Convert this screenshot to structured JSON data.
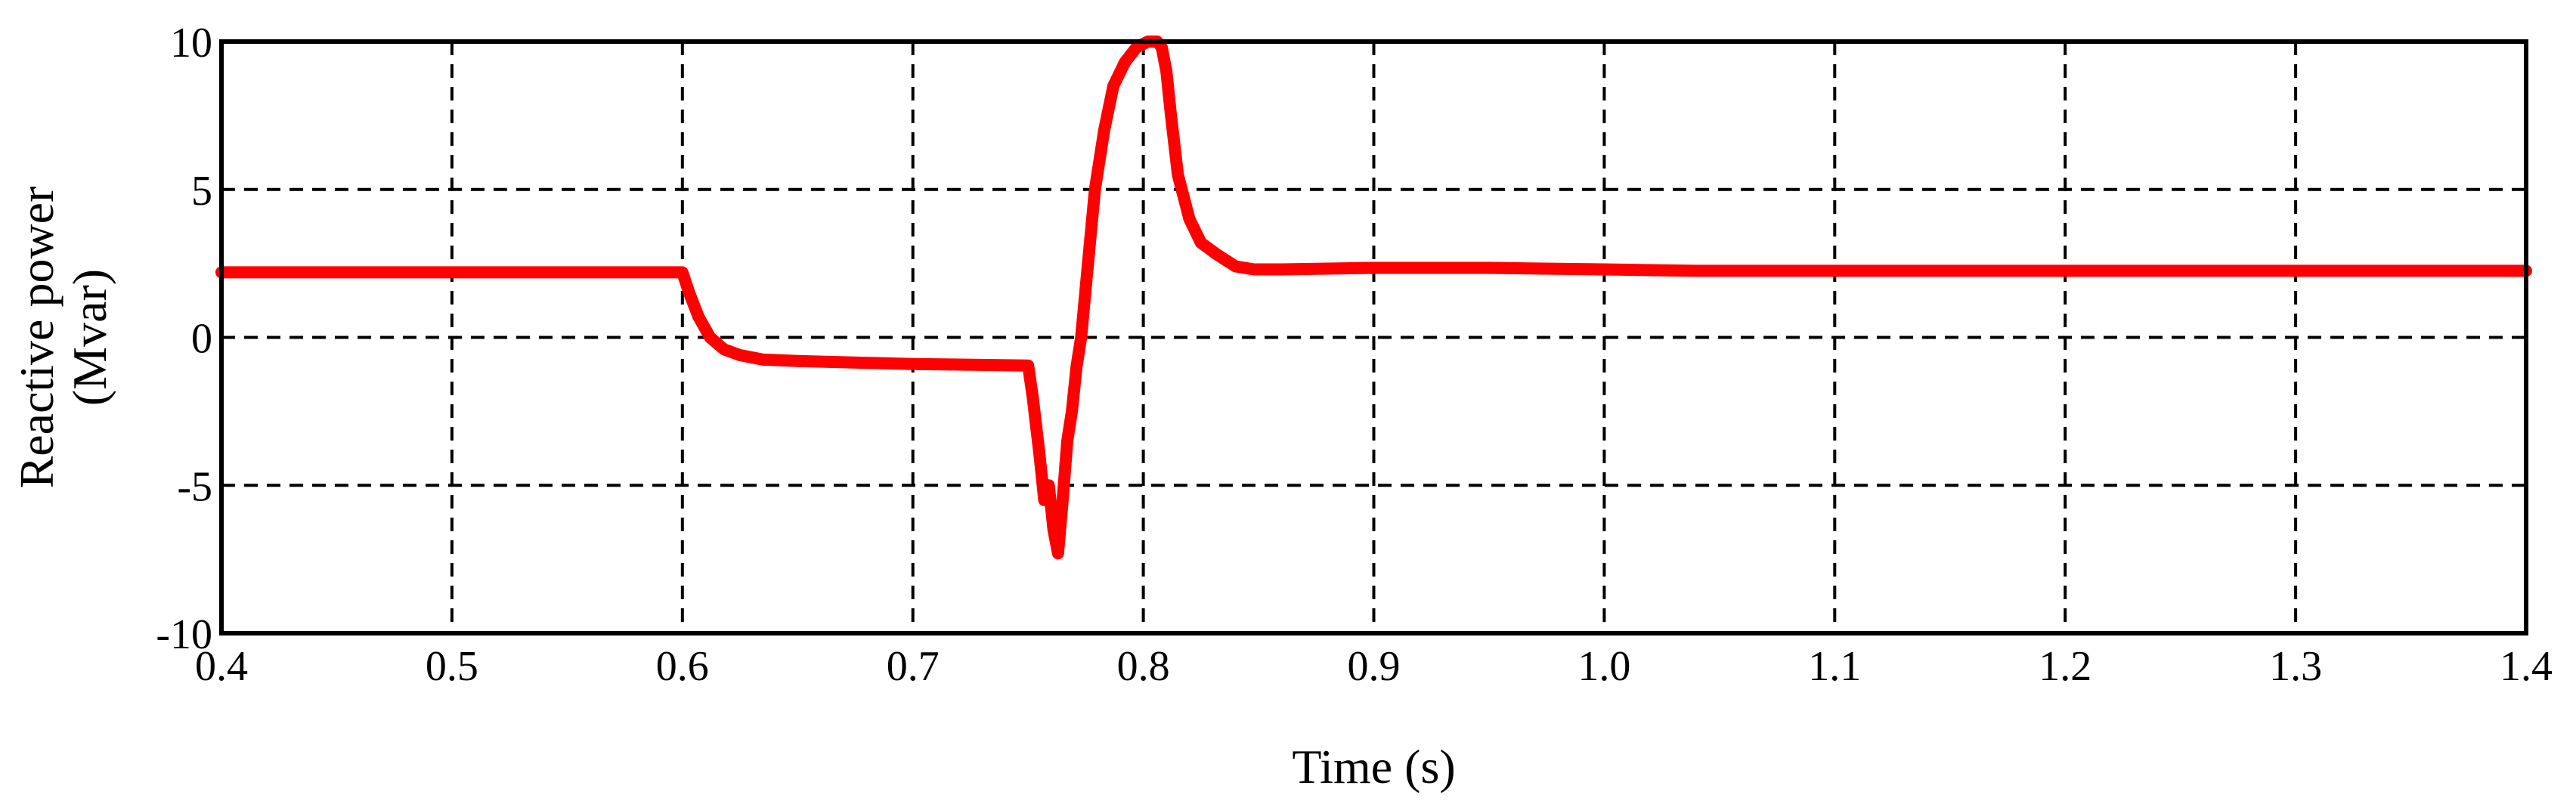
{
  "chart_data": {
    "type": "line",
    "title": "",
    "xlabel": "Time (s)",
    "ylabel_lines": [
      "Reactive power",
      "(Mvar)"
    ],
    "xlim": [
      0.4,
      1.4
    ],
    "ylim": [
      -10,
      10
    ],
    "x_ticks": [
      0.4,
      0.5,
      0.6,
      0.7,
      0.8,
      0.9,
      1.0,
      1.1,
      1.2,
      1.3,
      1.4
    ],
    "x_tick_labels": [
      "0.4",
      "0.5",
      "0.6",
      "0.7",
      "0.8",
      "0.9",
      "1.0",
      "1.1",
      "1.2",
      "1.3",
      "1.4"
    ],
    "y_ticks": [
      -10,
      -5,
      0,
      5,
      10
    ],
    "y_tick_labels": [
      "-10",
      "-5",
      "0",
      "5",
      "10"
    ],
    "grid": true,
    "grid_style": "dashed",
    "series": [
      {
        "color": "#ff0000",
        "x": [
          0.4,
          0.55,
          0.6,
          0.603,
          0.607,
          0.612,
          0.618,
          0.625,
          0.635,
          0.65,
          0.7,
          0.75,
          0.752,
          0.755,
          0.757,
          0.759,
          0.761,
          0.763,
          0.765,
          0.767,
          0.769,
          0.771,
          0.773,
          0.776,
          0.779,
          0.783,
          0.787,
          0.792,
          0.797,
          0.802,
          0.806,
          0.808,
          0.81,
          0.812,
          0.815,
          0.82,
          0.825,
          0.832,
          0.84,
          0.848,
          0.86,
          0.9,
          0.95,
          1.0,
          1.04,
          1.1,
          1.2,
          1.3,
          1.4
        ],
        "y": [
          2.2,
          2.2,
          2.2,
          1.5,
          0.7,
          0.0,
          -0.4,
          -0.6,
          -0.75,
          -0.8,
          -0.9,
          -0.95,
          -2.0,
          -4.0,
          -5.5,
          -5.0,
          -6.5,
          -7.3,
          -5.5,
          -3.5,
          -2.5,
          -1.0,
          0.0,
          2.5,
          5.0,
          7.0,
          8.5,
          9.3,
          9.8,
          10.0,
          10.0,
          9.8,
          9.0,
          7.5,
          5.5,
          4.0,
          3.2,
          2.8,
          2.4,
          2.3,
          2.3,
          2.35,
          2.35,
          2.3,
          2.25,
          2.25,
          2.25,
          2.25,
          2.25
        ]
      }
    ]
  }
}
